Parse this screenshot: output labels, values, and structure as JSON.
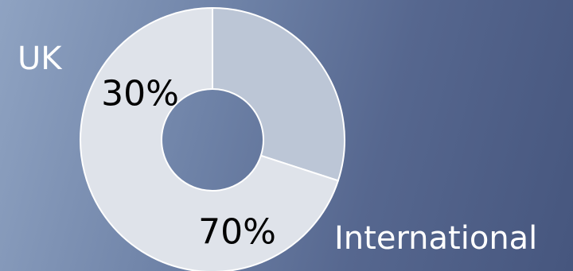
{
  "chart_data": {
    "type": "pie",
    "donut": true,
    "categories": [
      "UK",
      "International"
    ],
    "values": [
      30,
      70
    ],
    "value_labels": [
      "30%",
      "70%"
    ],
    "colors": {
      "UK": "#bcc6d6",
      "International": "#dfe3ea",
      "separator": "#ffffff",
      "value_label_text": "#000000",
      "category_label_text": "#ffffff"
    },
    "start_angle_deg": 0,
    "direction": "clockwise",
    "legend": "none"
  }
}
